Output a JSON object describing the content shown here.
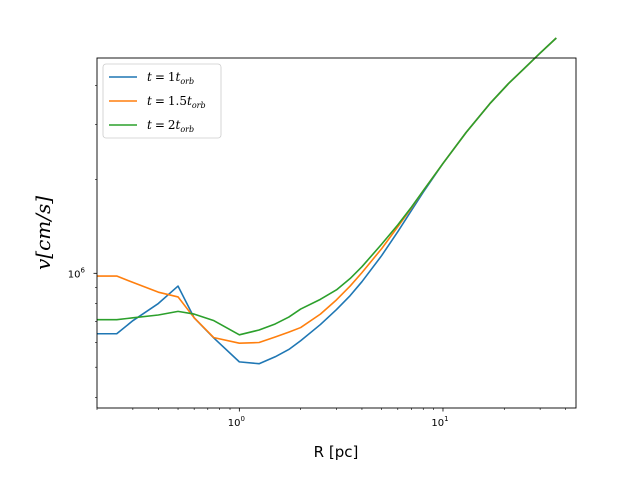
{
  "chart_data": {
    "type": "line",
    "title": "",
    "xlabel": "R [pc]",
    "ylabel": "v[cm/s]",
    "xscale": "log",
    "yscale": "log",
    "xlim": [
      0.2,
      45
    ],
    "ylim": [
      370000,
      4900000
    ],
    "grid": false,
    "legend_position": "top-left",
    "x_ticks": [
      {
        "value": 1,
        "base": "10",
        "exp": "0"
      },
      {
        "value": 10,
        "base": "10",
        "exp": "1"
      }
    ],
    "y_ticks": [
      {
        "value": 1000000,
        "base": "10",
        "exp": "6"
      }
    ],
    "x": [
      0.2,
      0.25,
      0.3,
      0.4,
      0.5,
      0.6,
      0.75,
      1.0,
      1.25,
      1.5,
      1.75,
      2.0,
      2.5,
      3.0,
      3.5,
      4.0,
      5.0,
      6.0,
      7.0,
      8.0,
      10.0,
      13.0,
      17.0,
      21.0,
      25.0,
      30.0,
      36.0
    ],
    "series": [
      {
        "name_parts": [
          "t",
          "=",
          "1",
          "t",
          "orb"
        ],
        "color": "#1f77b4",
        "values": [
          640000,
          640000,
          705000,
          800000,
          910000,
          720000,
          620000,
          520000,
          513000,
          540000,
          570000,
          608000,
          685000,
          765000,
          848000,
          940000,
          1140000,
          1360000,
          1590000,
          1820000,
          2250000,
          2830000,
          3500000,
          4060000,
          4530000,
          5080000,
          5680000
        ]
      },
      {
        "name_parts": [
          "t",
          "=",
          "1.5",
          "t",
          "orb"
        ],
        "color": "#ff7f0e",
        "values": [
          980000,
          980000,
          935000,
          870000,
          840000,
          720000,
          622000,
          597000,
          600000,
          625000,
          648000,
          670000,
          740000,
          822000,
          910000,
          1005000,
          1200000,
          1410000,
          1620000,
          1840000,
          2250000,
          2830000,
          3500000,
          4060000,
          4530000,
          5080000,
          5680000
        ]
      },
      {
        "name_parts": [
          "t",
          "=",
          "2",
          "t",
          "orb"
        ],
        "color": "#2ca02c",
        "values": [
          710000,
          710000,
          720000,
          735000,
          755000,
          740000,
          705000,
          635000,
          658000,
          688000,
          724000,
          768000,
          825000,
          885000,
          962000,
          1050000,
          1240000,
          1430000,
          1630000,
          1840000,
          2250000,
          2830000,
          3500000,
          4060000,
          4530000,
          5080000,
          5680000
        ]
      }
    ]
  }
}
